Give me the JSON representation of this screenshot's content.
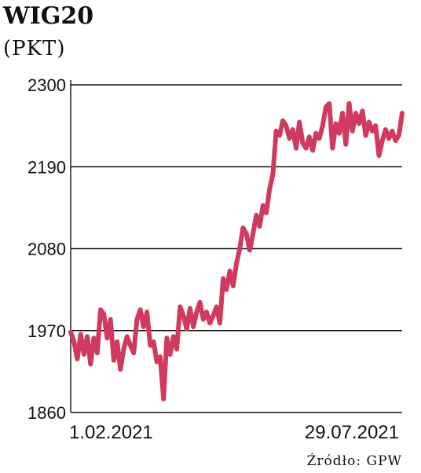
{
  "chart_data": {
    "type": "line",
    "title": "WIG20",
    "subtitle": "(PKT)",
    "source": "Źródło: GPW",
    "xlabel": "",
    "ylabel": "",
    "ylim": [
      1860,
      2300
    ],
    "yticks": [
      1860,
      1970,
      2080,
      2190,
      2300
    ],
    "x_tick_labels": [
      "1.02.2021",
      "29.07.2021"
    ],
    "x_range": [
      0,
      100
    ],
    "grid": true,
    "line_color": "#d03a5e",
    "series": [
      {
        "x": [
          0,
          1,
          2,
          3,
          4,
          5,
          6,
          7,
          8,
          9,
          10,
          11,
          12,
          13,
          14,
          15,
          16,
          17,
          18,
          19,
          20,
          21,
          22,
          23,
          24,
          25,
          26,
          27,
          28,
          29,
          30,
          31,
          32,
          33,
          34,
          35,
          36,
          37,
          38,
          39,
          40,
          41,
          42,
          43,
          44,
          45,
          46,
          47,
          48,
          49,
          50,
          51,
          52,
          53,
          54,
          55,
          56,
          57,
          58,
          59,
          60,
          61,
          62,
          63,
          64,
          65,
          66,
          67,
          68,
          69,
          70,
          71,
          72,
          73,
          74,
          75,
          76,
          77,
          78,
          79,
          80,
          81,
          82,
          83,
          84,
          85,
          86,
          87,
          88,
          89,
          90,
          91,
          92,
          93,
          94,
          95,
          96,
          97,
          98,
          99,
          100
        ],
        "values": [
          1968,
          1955,
          1932,
          1965,
          1938,
          1962,
          1925,
          1960,
          1940,
          1998,
          1992,
          1960,
          1985,
          1930,
          1955,
          1918,
          1945,
          1962,
          1950,
          1940,
          1985,
          1998,
          1975,
          1995,
          1950,
          1955,
          1928,
          1935,
          1878,
          1960,
          1938,
          1962,
          1945,
          2002,
          1990,
          1972,
          2000,
          1975,
          1995,
          2008,
          1985,
          1995,
          1980,
          1990,
          2002,
          1980,
          2040,
          2025,
          2050,
          2030,
          2060,
          2080,
          2108,
          2100,
          2078,
          2100,
          2125,
          2110,
          2138,
          2128,
          2160,
          2180,
          2238,
          2232,
          2252,
          2245,
          2228,
          2240,
          2215,
          2250,
          2222,
          2215,
          2230,
          2212,
          2235,
          2228,
          2245,
          2270,
          2275,
          2215,
          2248,
          2235,
          2262,
          2220,
          2275,
          2238,
          2262,
          2248,
          2265,
          2232,
          2250,
          2238,
          2245,
          2205,
          2225,
          2240,
          2228,
          2238,
          2225,
          2232,
          2262
        ]
      }
    ]
  }
}
